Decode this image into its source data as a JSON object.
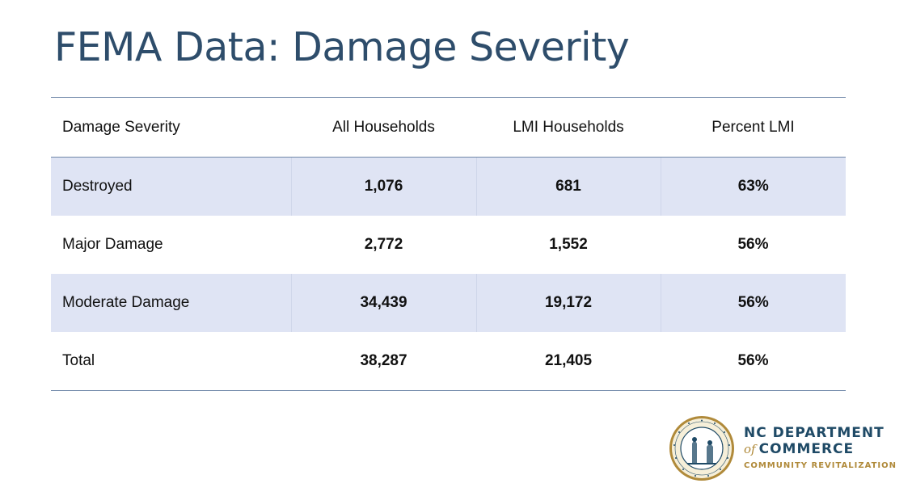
{
  "title": "FEMA Data: Damage Severity",
  "table": {
    "headers": [
      "Damage Severity",
      "All Households",
      "LMI Households",
      "Percent LMI"
    ],
    "rows": [
      {
        "label": "Destroyed",
        "all": "1,076",
        "lmi": "681",
        "pct": "63%"
      },
      {
        "label": "Major Damage",
        "all": "2,772",
        "lmi": "1,552",
        "pct": "56%"
      },
      {
        "label": "Moderate Damage",
        "all": "34,439",
        "lmi": "19,172",
        "pct": "56%"
      },
      {
        "label": "Total",
        "all": "38,287",
        "lmi": "21,405",
        "pct": "56%"
      }
    ]
  },
  "logo": {
    "line1": "NC DEPARTMENT",
    "line2_of": "of",
    "line2_main": "COMMERCE",
    "line3": "COMMUNITY REVITALIZATION",
    "seal_text": "THE GREAT SEAL OF THE STATE OF NORTH CAROLINA"
  },
  "colors": {
    "title": "#2e4d6b",
    "rule": "#6f87a8",
    "shade": "#dfe4f4",
    "logo_navy": "#1f4a66",
    "logo_gold": "#b08a3a"
  }
}
